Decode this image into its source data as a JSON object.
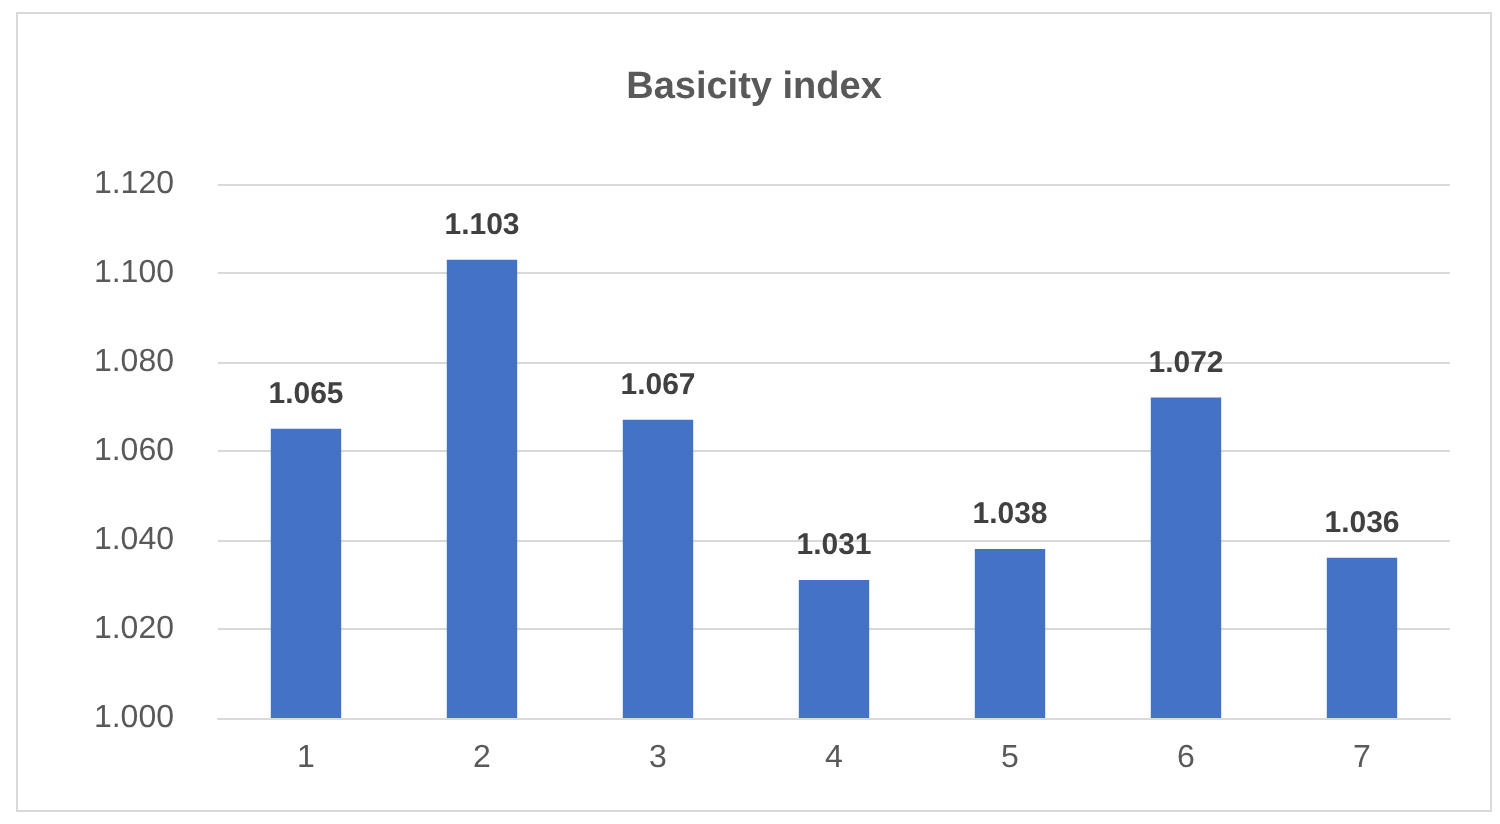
{
  "chart_data": {
    "type": "bar",
    "title": "Basicity index",
    "categories": [
      "1",
      "2",
      "3",
      "4",
      "5",
      "6",
      "7"
    ],
    "values": [
      1.065,
      1.103,
      1.067,
      1.031,
      1.038,
      1.072,
      1.036
    ],
    "color": "#4472c4",
    "ylim": [
      1.0,
      1.12
    ],
    "yticks": [
      {
        "value": 1.0,
        "label": "1.000"
      },
      {
        "value": 1.02,
        "label": "1.020"
      },
      {
        "value": 1.04,
        "label": "1.040"
      },
      {
        "value": 1.06,
        "label": "1.060"
      },
      {
        "value": 1.08,
        "label": "1.080"
      },
      {
        "value": 1.1,
        "label": "1.100"
      },
      {
        "value": 1.12,
        "label": "1.120"
      }
    ],
    "grid": "y",
    "data_labels": true
  }
}
